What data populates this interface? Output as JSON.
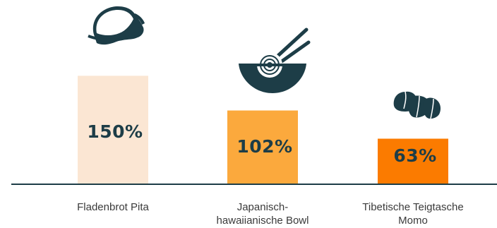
{
  "chart_data": {
    "type": "bar",
    "categories": [
      [
        "Fladenbrot Pita"
      ],
      [
        "Japanisch-",
        "hawaiianische Bowl"
      ],
      [
        "Tibetische Teigtasche",
        "Momo"
      ]
    ],
    "values": [
      150,
      102,
      63
    ],
    "value_labels": [
      "150%",
      "102%",
      "63%"
    ],
    "ylim": [
      0,
      165
    ],
    "grid": false,
    "icons": [
      "pita-icon",
      "bowl-icon",
      "momo-icon"
    ],
    "colors": {
      "bars": [
        "#fbe6d3",
        "#fba93d",
        "#fb7b00"
      ],
      "value_text": "#1d3d47",
      "axis": "#1d3d47",
      "icon": "#1d3d47",
      "category_text": "#3a3a3a"
    }
  }
}
